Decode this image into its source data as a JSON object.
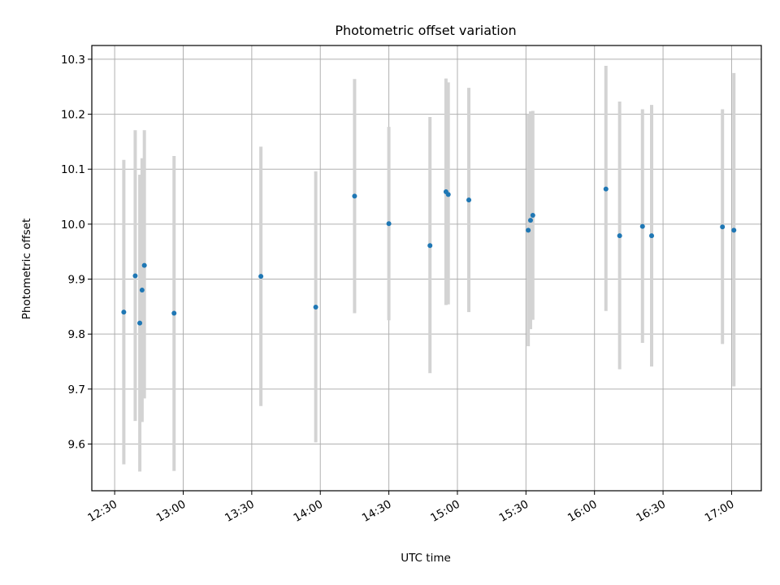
{
  "chart_data": {
    "type": "scatter",
    "title": "Photometric offset variation",
    "xlabel": "UTC time",
    "ylabel": "Photometric offset",
    "xlim": [
      "12:20",
      "17:13"
    ],
    "ylim": [
      9.515,
      10.325
    ],
    "x_ticks": [
      "12:30",
      "13:00",
      "13:30",
      "14:00",
      "14:30",
      "15:00",
      "15:30",
      "16:00",
      "16:30",
      "17:00"
    ],
    "y_ticks": [
      9.6,
      9.7,
      9.8,
      9.9,
      10.0,
      10.1,
      10.2,
      10.3
    ],
    "grid": true,
    "marker_color": "#1f77b4",
    "errorbar_color": "#d3d3d3",
    "points": [
      {
        "x": "12:34",
        "y": 9.84,
        "ylow": 9.563,
        "yhigh": 10.117
      },
      {
        "x": "12:39",
        "y": 9.906,
        "ylow": 9.642,
        "yhigh": 10.171
      },
      {
        "x": "12:41",
        "y": 9.82,
        "ylow": 9.55,
        "yhigh": 10.09
      },
      {
        "x": "12:42",
        "y": 9.88,
        "ylow": 9.64,
        "yhigh": 10.12
      },
      {
        "x": "12:43",
        "y": 9.925,
        "ylow": 9.683,
        "yhigh": 10.171
      },
      {
        "x": "12:56",
        "y": 9.838,
        "ylow": 9.551,
        "yhigh": 10.124
      },
      {
        "x": "13:34",
        "y": 9.905,
        "ylow": 9.669,
        "yhigh": 10.141
      },
      {
        "x": "13:58",
        "y": 9.849,
        "ylow": 9.603,
        "yhigh": 10.096
      },
      {
        "x": "14:15",
        "y": 10.051,
        "ylow": 9.838,
        "yhigh": 10.264
      },
      {
        "x": "14:30",
        "y": 10.001,
        "ylow": 9.825,
        "yhigh": 10.177
      },
      {
        "x": "14:48",
        "y": 9.961,
        "ylow": 9.729,
        "yhigh": 10.195
      },
      {
        "x": "14:55",
        "y": 10.059,
        "ylow": 9.853,
        "yhigh": 10.265
      },
      {
        "x": "14:56",
        "y": 10.054,
        "ylow": 9.854,
        "yhigh": 10.258
      },
      {
        "x": "15:05",
        "y": 10.044,
        "ylow": 9.84,
        "yhigh": 10.248
      },
      {
        "x": "15:31",
        "y": 9.989,
        "ylow": 9.778,
        "yhigh": 10.2
      },
      {
        "x": "15:32",
        "y": 10.007,
        "ylow": 9.809,
        "yhigh": 10.205
      },
      {
        "x": "15:33",
        "y": 10.016,
        "ylow": 9.826,
        "yhigh": 10.206
      },
      {
        "x": "16:05",
        "y": 10.064,
        "ylow": 9.842,
        "yhigh": 10.288
      },
      {
        "x": "16:11",
        "y": 9.979,
        "ylow": 9.736,
        "yhigh": 10.223
      },
      {
        "x": "16:21",
        "y": 9.996,
        "ylow": 9.784,
        "yhigh": 10.209
      },
      {
        "x": "16:25",
        "y": 9.979,
        "ylow": 9.741,
        "yhigh": 10.217
      },
      {
        "x": "16:56",
        "y": 9.995,
        "ylow": 9.782,
        "yhigh": 10.209
      },
      {
        "x": "17:01",
        "y": 9.989,
        "ylow": 9.705,
        "yhigh": 10.275
      }
    ]
  }
}
